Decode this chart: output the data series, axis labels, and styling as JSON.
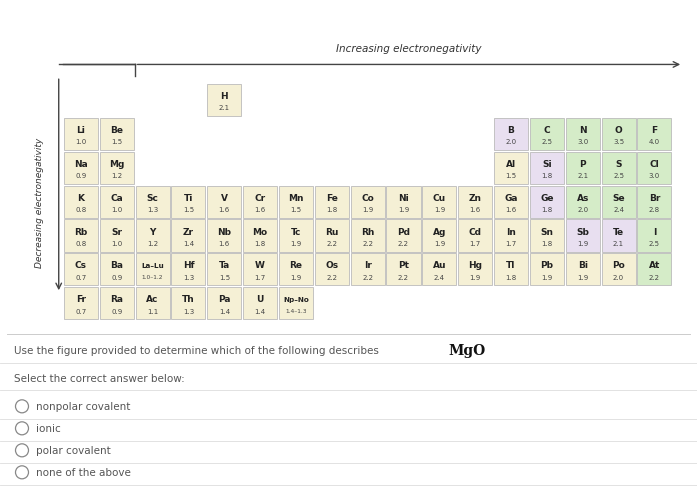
{
  "title": "Increasing electronegativity",
  "left_label": "Decreasing electronegativity",
  "select_text": "Select the correct answer below:",
  "options": [
    "nonpolar covalent",
    "ionic",
    "polar covalent",
    "none of the above"
  ],
  "bg_color": "#ffffff",
  "cell_color_metal": "#f5f0d5",
  "cell_color_metalloid": "#e8dff0",
  "cell_color_nonmetal": "#d5ecc8",
  "border_color": "#bbbbbb",
  "text_color_sym": "#222222",
  "text_color_en": "#444444",
  "elements": [
    {
      "symbol": "H",
      "en": "2.1",
      "col": 4,
      "row": 0,
      "type": "metal"
    },
    {
      "symbol": "Li",
      "en": "1.0",
      "col": 0,
      "row": 1,
      "type": "metal"
    },
    {
      "symbol": "Be",
      "en": "1.5",
      "col": 1,
      "row": 1,
      "type": "metal"
    },
    {
      "symbol": "B",
      "en": "2.0",
      "col": 12,
      "row": 1,
      "type": "metalloid"
    },
    {
      "symbol": "C",
      "en": "2.5",
      "col": 13,
      "row": 1,
      "type": "nonmetal"
    },
    {
      "symbol": "N",
      "en": "3.0",
      "col": 14,
      "row": 1,
      "type": "nonmetal"
    },
    {
      "symbol": "O",
      "en": "3.5",
      "col": 15,
      "row": 1,
      "type": "nonmetal"
    },
    {
      "symbol": "F",
      "en": "4.0",
      "col": 16,
      "row": 1,
      "type": "nonmetal"
    },
    {
      "symbol": "Na",
      "en": "0.9",
      "col": 0,
      "row": 2,
      "type": "metal"
    },
    {
      "symbol": "Mg",
      "en": "1.2",
      "col": 1,
      "row": 2,
      "type": "metal"
    },
    {
      "symbol": "Al",
      "en": "1.5",
      "col": 12,
      "row": 2,
      "type": "metal"
    },
    {
      "symbol": "Si",
      "en": "1.8",
      "col": 13,
      "row": 2,
      "type": "metalloid"
    },
    {
      "symbol": "P",
      "en": "2.1",
      "col": 14,
      "row": 2,
      "type": "nonmetal"
    },
    {
      "symbol": "S",
      "en": "2.5",
      "col": 15,
      "row": 2,
      "type": "nonmetal"
    },
    {
      "symbol": "Cl",
      "en": "3.0",
      "col": 16,
      "row": 2,
      "type": "nonmetal"
    },
    {
      "symbol": "K",
      "en": "0.8",
      "col": 0,
      "row": 3,
      "type": "metal"
    },
    {
      "symbol": "Ca",
      "en": "1.0",
      "col": 1,
      "row": 3,
      "type": "metal"
    },
    {
      "symbol": "Sc",
      "en": "1.3",
      "col": 2,
      "row": 3,
      "type": "metal"
    },
    {
      "symbol": "Ti",
      "en": "1.5",
      "col": 3,
      "row": 3,
      "type": "metal"
    },
    {
      "symbol": "V",
      "en": "1.6",
      "col": 4,
      "row": 3,
      "type": "metal"
    },
    {
      "symbol": "Cr",
      "en": "1.6",
      "col": 5,
      "row": 3,
      "type": "metal"
    },
    {
      "symbol": "Mn",
      "en": "1.5",
      "col": 6,
      "row": 3,
      "type": "metal"
    },
    {
      "symbol": "Fe",
      "en": "1.8",
      "col": 7,
      "row": 3,
      "type": "metal"
    },
    {
      "symbol": "Co",
      "en": "1.9",
      "col": 8,
      "row": 3,
      "type": "metal"
    },
    {
      "symbol": "Ni",
      "en": "1.9",
      "col": 9,
      "row": 3,
      "type": "metal"
    },
    {
      "symbol": "Cu",
      "en": "1.9",
      "col": 10,
      "row": 3,
      "type": "metal"
    },
    {
      "symbol": "Zn",
      "en": "1.6",
      "col": 11,
      "row": 3,
      "type": "metal"
    },
    {
      "symbol": "Ga",
      "en": "1.6",
      "col": 12,
      "row": 3,
      "type": "metal"
    },
    {
      "symbol": "Ge",
      "en": "1.8",
      "col": 13,
      "row": 3,
      "type": "metalloid"
    },
    {
      "symbol": "As",
      "en": "2.0",
      "col": 14,
      "row": 3,
      "type": "nonmetal"
    },
    {
      "symbol": "Se",
      "en": "2.4",
      "col": 15,
      "row": 3,
      "type": "nonmetal"
    },
    {
      "symbol": "Br",
      "en": "2.8",
      "col": 16,
      "row": 3,
      "type": "nonmetal"
    },
    {
      "symbol": "Rb",
      "en": "0.8",
      "col": 0,
      "row": 4,
      "type": "metal"
    },
    {
      "symbol": "Sr",
      "en": "1.0",
      "col": 1,
      "row": 4,
      "type": "metal"
    },
    {
      "symbol": "Y",
      "en": "1.2",
      "col": 2,
      "row": 4,
      "type": "metal"
    },
    {
      "symbol": "Zr",
      "en": "1.4",
      "col": 3,
      "row": 4,
      "type": "metal"
    },
    {
      "symbol": "Nb",
      "en": "1.6",
      "col": 4,
      "row": 4,
      "type": "metal"
    },
    {
      "symbol": "Mo",
      "en": "1.8",
      "col": 5,
      "row": 4,
      "type": "metal"
    },
    {
      "symbol": "Tc",
      "en": "1.9",
      "col": 6,
      "row": 4,
      "type": "metal"
    },
    {
      "symbol": "Ru",
      "en": "2.2",
      "col": 7,
      "row": 4,
      "type": "metal"
    },
    {
      "symbol": "Rh",
      "en": "2.2",
      "col": 8,
      "row": 4,
      "type": "metal"
    },
    {
      "symbol": "Pd",
      "en": "2.2",
      "col": 9,
      "row": 4,
      "type": "metal"
    },
    {
      "symbol": "Ag",
      "en": "1.9",
      "col": 10,
      "row": 4,
      "type": "metal"
    },
    {
      "symbol": "Cd",
      "en": "1.7",
      "col": 11,
      "row": 4,
      "type": "metal"
    },
    {
      "symbol": "In",
      "en": "1.7",
      "col": 12,
      "row": 4,
      "type": "metal"
    },
    {
      "symbol": "Sn",
      "en": "1.8",
      "col": 13,
      "row": 4,
      "type": "metal"
    },
    {
      "symbol": "Sb",
      "en": "1.9",
      "col": 14,
      "row": 4,
      "type": "metalloid"
    },
    {
      "symbol": "Te",
      "en": "2.1",
      "col": 15,
      "row": 4,
      "type": "metalloid"
    },
    {
      "symbol": "I",
      "en": "2.5",
      "col": 16,
      "row": 4,
      "type": "nonmetal"
    },
    {
      "symbol": "Cs",
      "en": "0.7",
      "col": 0,
      "row": 5,
      "type": "metal"
    },
    {
      "symbol": "Ba",
      "en": "0.9",
      "col": 1,
      "row": 5,
      "type": "metal"
    },
    {
      "symbol": "La–Lu",
      "en": "1.0–1.2",
      "col": 2,
      "row": 5,
      "type": "metal"
    },
    {
      "symbol": "Hf",
      "en": "1.3",
      "col": 3,
      "row": 5,
      "type": "metal"
    },
    {
      "symbol": "Ta",
      "en": "1.5",
      "col": 4,
      "row": 5,
      "type": "metal"
    },
    {
      "symbol": "W",
      "en": "1.7",
      "col": 5,
      "row": 5,
      "type": "metal"
    },
    {
      "symbol": "Re",
      "en": "1.9",
      "col": 6,
      "row": 5,
      "type": "metal"
    },
    {
      "symbol": "Os",
      "en": "2.2",
      "col": 7,
      "row": 5,
      "type": "metal"
    },
    {
      "symbol": "Ir",
      "en": "2.2",
      "col": 8,
      "row": 5,
      "type": "metal"
    },
    {
      "symbol": "Pt",
      "en": "2.2",
      "col": 9,
      "row": 5,
      "type": "metal"
    },
    {
      "symbol": "Au",
      "en": "2.4",
      "col": 10,
      "row": 5,
      "type": "metal"
    },
    {
      "symbol": "Hg",
      "en": "1.9",
      "col": 11,
      "row": 5,
      "type": "metal"
    },
    {
      "symbol": "Tl",
      "en": "1.8",
      "col": 12,
      "row": 5,
      "type": "metal"
    },
    {
      "symbol": "Pb",
      "en": "1.9",
      "col": 13,
      "row": 5,
      "type": "metal"
    },
    {
      "symbol": "Bi",
      "en": "1.9",
      "col": 14,
      "row": 5,
      "type": "metal"
    },
    {
      "symbol": "Po",
      "en": "2.0",
      "col": 15,
      "row": 5,
      "type": "metal"
    },
    {
      "symbol": "At",
      "en": "2.2",
      "col": 16,
      "row": 5,
      "type": "nonmetal"
    },
    {
      "symbol": "Fr",
      "en": "0.7",
      "col": 0,
      "row": 6,
      "type": "metal"
    },
    {
      "symbol": "Ra",
      "en": "0.9",
      "col": 1,
      "row": 6,
      "type": "metal"
    },
    {
      "symbol": "Ac",
      "en": "1.1",
      "col": 2,
      "row": 6,
      "type": "metal"
    },
    {
      "symbol": "Th",
      "en": "1.3",
      "col": 3,
      "row": 6,
      "type": "metal"
    },
    {
      "symbol": "Pa",
      "en": "1.4",
      "col": 4,
      "row": 6,
      "type": "metal"
    },
    {
      "symbol": "U",
      "en": "1.4",
      "col": 5,
      "row": 6,
      "type": "metal"
    },
    {
      "symbol": "Np–No",
      "en": "1.4–1.3",
      "col": 6,
      "row": 6,
      "type": "metal"
    }
  ]
}
